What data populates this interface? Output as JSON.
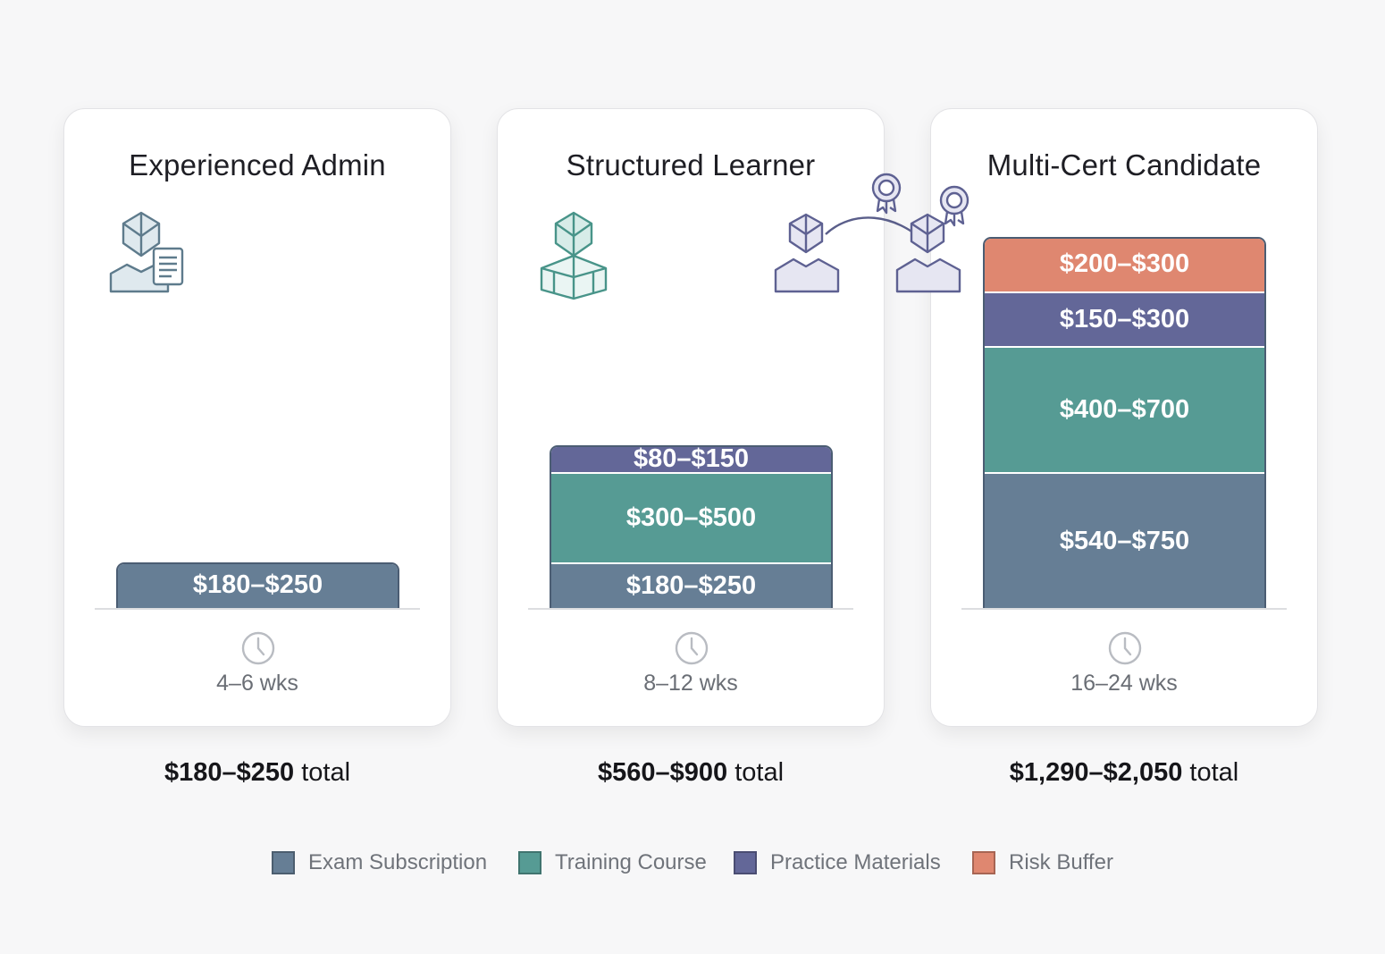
{
  "chart_data": {
    "type": "stacked-bar",
    "legend_position": "bottom",
    "series_colors": {
      "Exam Subscription": "#667e95",
      "Training Course": "#569b94",
      "Practice Materials": "#636798",
      "Risk Buffer": "#df8770"
    },
    "legend": [
      {
        "label": "Exam Subscription",
        "color": "#667e95"
      },
      {
        "label": "Training Course",
        "color": "#569b94"
      },
      {
        "label": "Practice Materials",
        "color": "#636798"
      },
      {
        "label": "Risk Buffer",
        "color": "#df8770"
      }
    ],
    "profiles": [
      {
        "title": "Experienced Admin",
        "icon": "admin-with-document-icon",
        "duration": "4–6 wks",
        "total": {
          "amount": "$180–$250",
          "suffix": " total"
        },
        "segments": [
          {
            "series": "Exam Subscription",
            "label": "$180–$250",
            "min": 180,
            "max": 250
          }
        ]
      },
      {
        "title": "Structured Learner",
        "icon": "learner-with-book-icon",
        "duration": "8–12 wks",
        "total": {
          "amount": "$560–$900",
          "suffix": " total"
        },
        "segments": [
          {
            "series": "Exam Subscription",
            "label": "$180–$250",
            "min": 180,
            "max": 250
          },
          {
            "series": "Training Course",
            "label": "$300–$500",
            "min": 300,
            "max": 500
          },
          {
            "series": "Practice Materials",
            "label": "$80–$150",
            "min": 80,
            "max": 150
          }
        ]
      },
      {
        "title": "Multi-Cert Candidate",
        "icon": "multi-cert-candidates-icon",
        "duration": "16–24 wks",
        "total": {
          "amount": "$1,290–$2,050",
          "suffix": " total"
        },
        "segments": [
          {
            "series": "Exam Subscription",
            "label": "$540–$750",
            "min": 540,
            "max": 750
          },
          {
            "series": "Training Course",
            "label": "$400–$700",
            "min": 400,
            "max": 700
          },
          {
            "series": "Practice Materials",
            "label": "$150–$300",
            "min": 150,
            "max": 300
          },
          {
            "series": "Risk Buffer",
            "label": "$200–$300",
            "min": 200,
            "max": 300
          }
        ]
      }
    ]
  }
}
